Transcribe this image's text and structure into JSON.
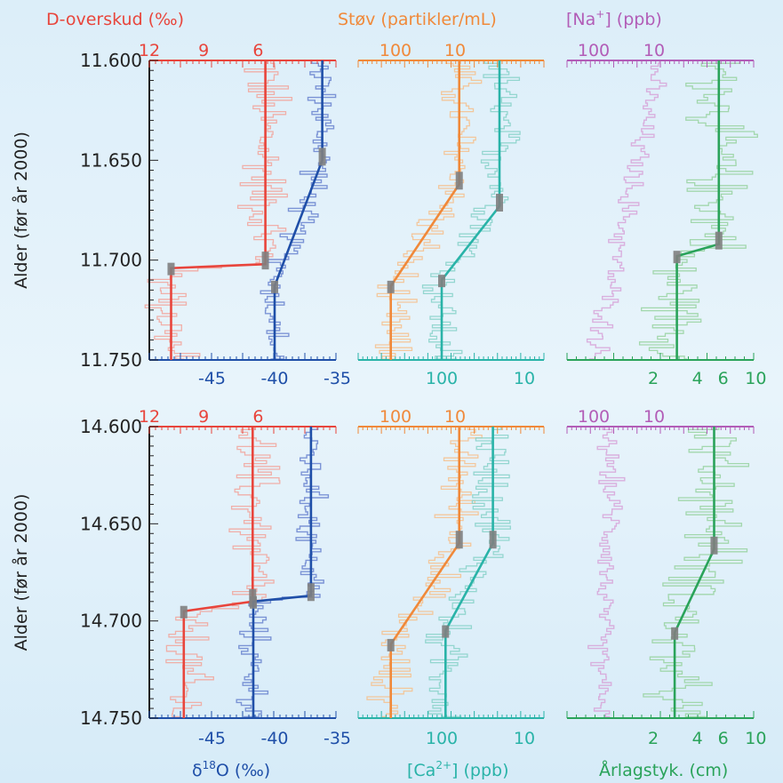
{
  "colors": {
    "dexcess": "#e8453c",
    "dexcess_light": "#f2a39a",
    "d18o": "#1f4fa8",
    "d18o_light": "#6a84cf",
    "dust": "#f0893a",
    "dust_light": "#f6bf8c",
    "ca": "#29b3a8",
    "ca_light": "#86d1c8",
    "na": "#b25db7",
    "na_light": "#d7a3d8",
    "layer": "#2aa35a",
    "layer_light": "#97d29f",
    "axis": "#1f3f9a",
    "marker": "#808080",
    "text_dark": "#222222"
  },
  "labels": {
    "top_dexcess": "D-overskud (‰)",
    "top_dust": "Støv (partikler/mL)",
    "top_na_prefix": "[Na",
    "top_na_sup": "+",
    "top_na_suffix": "] (ppb)",
    "bottom_d18o_delta": "δ",
    "bottom_d18o_sup": "18",
    "bottom_d18o_rest": "O (‰)",
    "bottom_ca_prefix": "[Ca",
    "bottom_ca_sup": "2+",
    "bottom_ca_suffix": "]  (ppb)",
    "bottom_layer": "Årlagstyk. (cm)",
    "y_axis": "Alder (før år 2000)"
  },
  "chart_data": [
    {
      "type": "line",
      "panel": "upper",
      "y_axis": {
        "label": "Alder (før år 2000)",
        "ticks": [
          "11.600",
          "11.650",
          "11.700",
          "11.750"
        ],
        "range": [
          11.6,
          11.75
        ]
      },
      "top_ticks": {
        "dexcess": [
          "12",
          "9",
          "6"
        ],
        "dust": [
          "100",
          "10"
        ],
        "na": [
          "100",
          "10"
        ]
      },
      "bottom_ticks": {
        "d18o": [
          "-45",
          "-40",
          "-35"
        ],
        "ca": [
          "100",
          "10"
        ],
        "layer": [
          "2",
          "4",
          "6",
          "10"
        ]
      },
      "series": [
        {
          "key": "dexcess",
          "fit": [
            [
              11.6,
              5.6
            ],
            [
              11.702,
              5.6
            ],
            [
              11.704,
              10.8
            ],
            [
              11.75,
              10.8
            ]
          ],
          "transition": [
            11.702,
            11.704
          ]
        },
        {
          "key": "d18o",
          "fit": [
            [
              11.6,
              -36.2
            ],
            [
              11.65,
              -36.2
            ],
            [
              11.713,
              -40
            ],
            [
              11.75,
              -40
            ]
          ],
          "transition": [
            11.65,
            11.713
          ]
        },
        {
          "key": "dust",
          "fit": [
            [
              11.6,
              8.5
            ],
            [
              11.662,
              8.5
            ],
            [
              11.713,
              120
            ],
            [
              11.75,
              120
            ]
          ],
          "transition": [
            11.662,
            11.713
          ]
        },
        {
          "key": "ca",
          "fit": [
            [
              11.6,
              20
            ],
            [
              11.673,
              20
            ],
            [
              11.71,
              100
            ],
            [
              11.75,
              100
            ]
          ],
          "transition": [
            11.673,
            11.71
          ]
        },
        {
          "key": "layer",
          "fit": [
            [
              11.6,
              5.6
            ],
            [
              11.692,
              5.6
            ],
            [
              11.698,
              2.9
            ],
            [
              11.75,
              2.9
            ]
          ],
          "transition": [
            11.692,
            11.698
          ]
        }
      ]
    },
    {
      "type": "line",
      "panel": "lower",
      "y_axis": {
        "label": "Alder (før år 2000)",
        "ticks": [
          "14.600",
          "14.650",
          "14.700",
          "14.750"
        ],
        "range": [
          14.6,
          14.75
        ]
      },
      "top_ticks": {
        "dexcess": [
          "12",
          "9",
          "6"
        ],
        "dust": [
          "100",
          "10"
        ],
        "na": [
          "100",
          "10"
        ]
      },
      "bottom_ticks": {
        "d18o": [
          "-45",
          "-40",
          "-35"
        ],
        "ca": [
          "100",
          "10"
        ],
        "layer": [
          "2",
          "4",
          "6",
          "10"
        ]
      },
      "series": [
        {
          "key": "dexcess",
          "fit": [
            [
              14.6,
              6.3
            ],
            [
              14.69,
              6.3
            ],
            [
              14.695,
              10.1
            ],
            [
              14.75,
              10.1
            ]
          ],
          "transition": [
            14.69,
            14.695
          ]
        },
        {
          "key": "d18o",
          "fit": [
            [
              14.6,
              -37.1
            ],
            [
              14.687,
              -37.1
            ],
            [
              14.69,
              -41.7
            ],
            [
              14.75,
              -41.7
            ]
          ],
          "transition": [
            14.687,
            14.69
          ]
        },
        {
          "key": "dust",
          "fit": [
            [
              14.6,
              8.5
            ],
            [
              14.66,
              8.5
            ],
            [
              14.712,
              120
            ],
            [
              14.75,
              120
            ]
          ],
          "transition": [
            14.66,
            14.712
          ]
        },
        {
          "key": "ca",
          "fit": [
            [
              14.6,
              24
            ],
            [
              14.66,
              24
            ],
            [
              14.705,
              90
            ],
            [
              14.75,
              90
            ]
          ],
          "transition": [
            14.66,
            14.705
          ]
        },
        {
          "key": "layer",
          "fit": [
            [
              14.6,
              5.2
            ],
            [
              14.663,
              5.2
            ],
            [
              14.706,
              2.8
            ],
            [
              14.75,
              2.8
            ]
          ],
          "transition": [
            14.663,
            14.706
          ]
        }
      ]
    }
  ]
}
